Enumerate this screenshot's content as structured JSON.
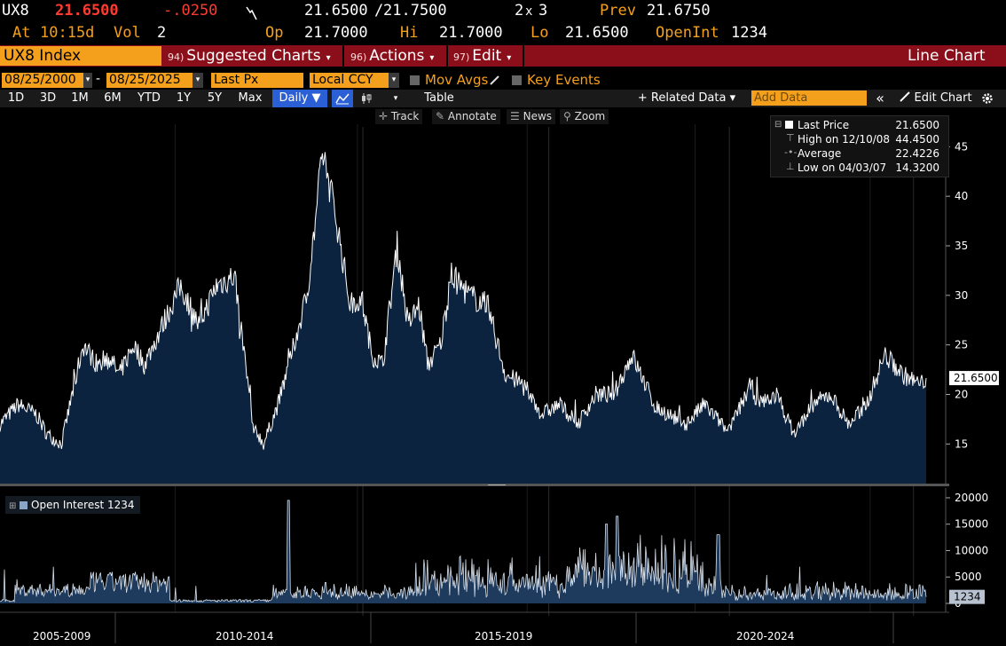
{
  "quote": {
    "ticker": "UX8",
    "last": "21.6500",
    "change": "-.0250",
    "bid_ask_sep": "/",
    "bid": "21.6500",
    "ask": "21.7500",
    "size": "2",
    "size_x": "x",
    "size2": "3",
    "prev_label": "Prev",
    "prev": "21.6750",
    "at_label": "At",
    "time": "10:15d",
    "vol_label": "Vol",
    "vol": "2",
    "op_label": "Op",
    "op": "21.7000",
    "hi_label": "Hi",
    "hi": "21.7000",
    "lo_label": "Lo",
    "lo": "21.6500",
    "oi_label": "OpenInt",
    "oi": "1234"
  },
  "menu": {
    "security": "UX8 Index",
    "suggested": {
      "num": "94)",
      "label": "Suggested Charts"
    },
    "actions": {
      "num": "96)",
      "label": "Actions"
    },
    "edit": {
      "num": "97)",
      "label": "Edit"
    },
    "chart_type": "Line Chart"
  },
  "range": {
    "start": "08/25/2000",
    "dash": "-",
    "end": "08/25/2025",
    "field": "Last Px",
    "currency": "Local CCY",
    "mov_avgs": "Mov Avgs",
    "key_events": "Key Events"
  },
  "toolbar": {
    "periods": [
      "1D",
      "3D",
      "1M",
      "6M",
      "YTD",
      "1Y",
      "5Y",
      "Max"
    ],
    "frequency": "Daily ▼",
    "table": "Table",
    "related": "+ Related Data ▾",
    "add_data_placeholder": "Add Data",
    "collapse": "«",
    "edit_chart": "Edit Chart"
  },
  "subtools": {
    "track": "Track",
    "annotate": "Annotate",
    "news": "News",
    "zoom": "Zoom"
  },
  "legend": {
    "last_label": "Last Price",
    "last_value": "21.6500",
    "high_label": "High on 12/10/08",
    "high_value": "44.4500",
    "avg_label": "Average",
    "avg_value": "22.4226",
    "low_label": "Low on 04/03/07",
    "low_value": "14.3200"
  },
  "oi_panel": {
    "legend": "Open Interest 1234"
  },
  "colors": {
    "accent": "#f4a01c",
    "menubar": "#8b0f1a",
    "area_fill": "#0c2340",
    "line": "#ffffff",
    "oi_fill": "#1e3a5c"
  },
  "chart_data": [
    {
      "type": "area",
      "series": [
        {
          "name": "Last Price",
          "x": [
            2000,
            2000.5,
            2001,
            2001.3,
            2001.7,
            2002,
            2002.3,
            2002.7,
            2003,
            2003.3,
            2003.7,
            2004,
            2004.5,
            2005,
            2005.5,
            2006,
            2006.5,
            2007,
            2007.3,
            2007.7,
            2008,
            2008.5,
            2008.95,
            2009.3,
            2009.7,
            2010,
            2010.3,
            2010.6,
            2011,
            2011.3,
            2011.6,
            2011.85,
            2012.2,
            2012.5,
            2013,
            2013.5,
            2014,
            2014.5,
            2015,
            2015.5,
            2016,
            2016.5,
            2017,
            2017.5,
            2018,
            2018.1,
            2018.5,
            2019,
            2019.5,
            2020,
            2020.15,
            2020.4,
            2020.8,
            2021,
            2021.5,
            2022,
            2022.5,
            2023,
            2023.5,
            2024,
            2024.5,
            2025,
            2025.5,
            2025.65
          ],
          "y": [
            17,
            19,
            18,
            16,
            15,
            20,
            25,
            23,
            24,
            22,
            25,
            23,
            27,
            31,
            27,
            31,
            32,
            17,
            15,
            19,
            23,
            30,
            44.45,
            38,
            29,
            30,
            24,
            23,
            35,
            27,
            29,
            23,
            25,
            32,
            30,
            29,
            22,
            21,
            18,
            19,
            17,
            20,
            20,
            24,
            20,
            19,
            18,
            17,
            19,
            17,
            16,
            18,
            21,
            19,
            20,
            16,
            19,
            20,
            17,
            19,
            24,
            22,
            21,
            21.65
          ]
        }
      ],
      "ylim": [
        11,
        47
      ],
      "y_ticks": [
        15,
        20,
        25,
        30,
        35,
        40,
        45
      ],
      "last_value_label": "21.6500"
    },
    {
      "type": "area",
      "series": [
        {
          "name": "Open Interest 1234"
        }
      ],
      "ylim": [
        0,
        21000
      ],
      "y_ticks": [
        0,
        5000,
        10000,
        15000,
        20000
      ],
      "last_value_label": "1234"
    }
  ],
  "x_labels": [
    "2005-2009",
    "2010-2014",
    "2015-2019",
    "2020-2024"
  ]
}
